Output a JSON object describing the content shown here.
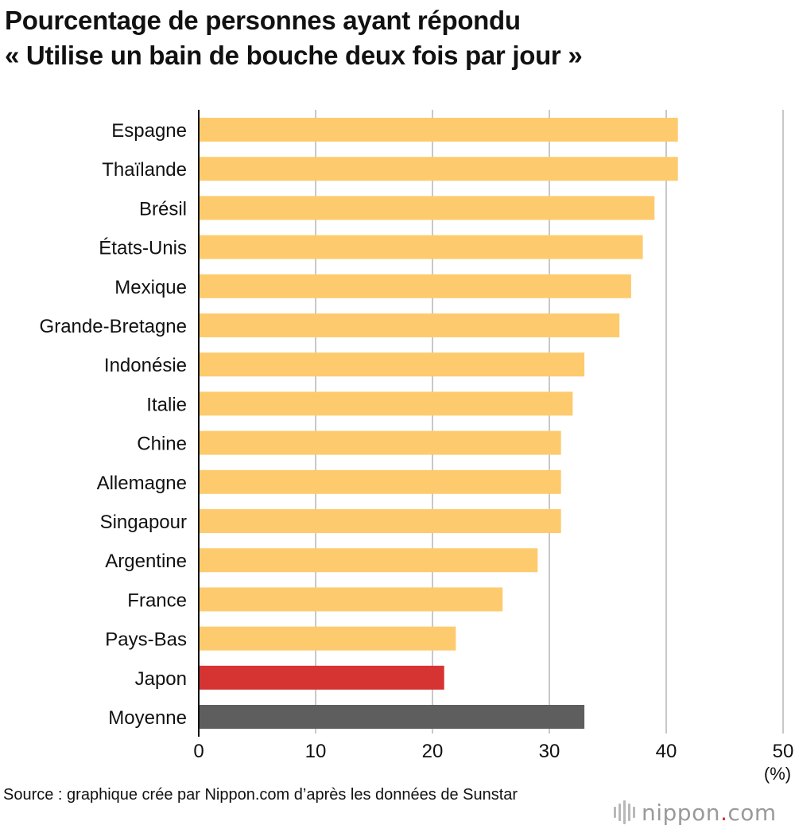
{
  "title": {
    "line1": "Pourcentage de personnes ayant répondu",
    "line2": "« Utilise un bain de bouche deux fois par jour »"
  },
  "chart_data": {
    "type": "bar",
    "orientation": "horizontal",
    "title": "Pourcentage de personnes ayant répondu « Utilise un bain de bouche deux fois par jour »",
    "categories": [
      "Espagne",
      "Thaïlande",
      "Brésil",
      "États-Unis",
      "Mexique",
      "Grande-Bretagne",
      "Indonésie",
      "Italie",
      "Chine",
      "Allemagne",
      "Singapour",
      "Argentine",
      "France",
      "Pays-Bas",
      "Japon",
      "Moyenne"
    ],
    "values": [
      41,
      41,
      39,
      38,
      37,
      36,
      33,
      32,
      31,
      31,
      31,
      29,
      26,
      22,
      21,
      33
    ],
    "bar_colors": [
      "#fdcb6e",
      "#fdcb6e",
      "#fdcb6e",
      "#fdcb6e",
      "#fdcb6e",
      "#fdcb6e",
      "#fdcb6e",
      "#fdcb6e",
      "#fdcb6e",
      "#fdcb6e",
      "#fdcb6e",
      "#fdcb6e",
      "#fdcb6e",
      "#fdcb6e",
      "#d63333",
      "#5e5e5e"
    ],
    "xlim": [
      0,
      50
    ],
    "xticks": [
      0,
      10,
      20,
      30,
      40,
      50
    ],
    "xunit": "(%)",
    "grid": true
  },
  "source": "Source : graphique crée par Nippon.com d’après les données de Sunstar",
  "logo": {
    "name": "nippon",
    "dot": ".",
    "tld": "com"
  }
}
